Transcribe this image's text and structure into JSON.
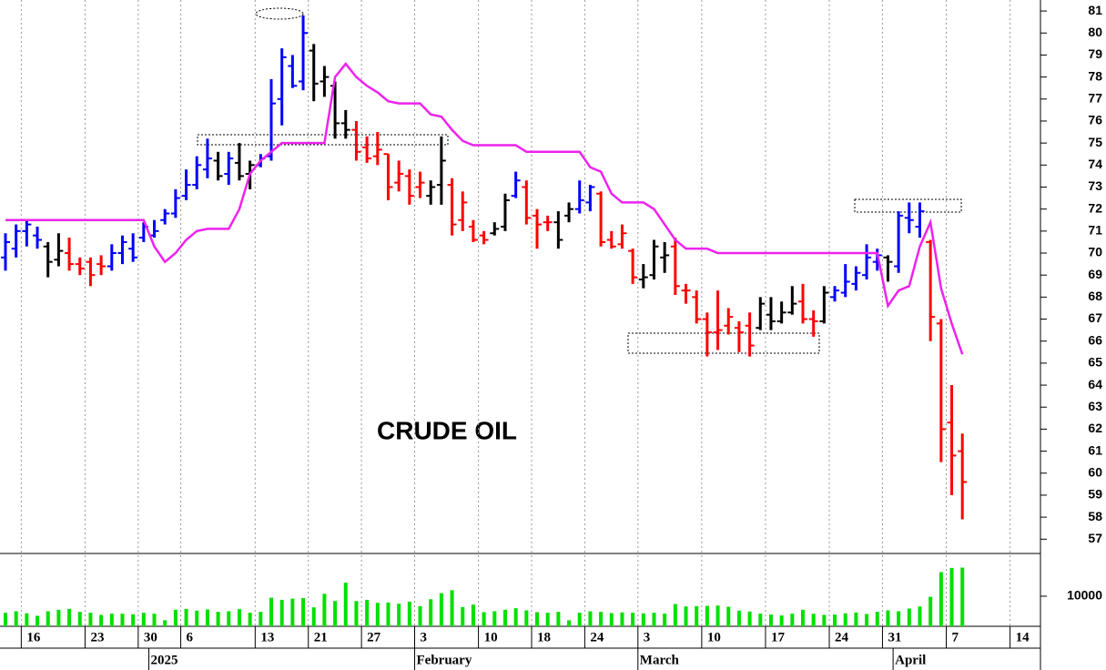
{
  "chart_data": [
    {
      "type": "ohlc",
      "annotation": "CRUDE OIL",
      "categories": [
        null,
        null,
        "16",
        null,
        null,
        null,
        null,
        null,
        "23",
        null,
        null,
        null,
        null,
        "30",
        null,
        null,
        null,
        "6",
        null,
        null,
        null,
        null,
        null,
        null,
        "13",
        null,
        null,
        null,
        null,
        "21",
        null,
        null,
        null,
        null,
        "27",
        null,
        null,
        null,
        null,
        "3",
        null,
        null,
        null,
        null,
        null,
        "10",
        null,
        null,
        null,
        null,
        "18",
        null,
        null,
        null,
        null,
        "24",
        null,
        null,
        null,
        null,
        "3",
        null,
        null,
        null,
        null,
        null,
        "10",
        null,
        null,
        null,
        null,
        null,
        "17",
        null,
        null,
        null,
        null,
        null,
        "24",
        null,
        null,
        null,
        null,
        "31",
        null,
        null,
        null,
        null,
        null,
        "7",
        null,
        null,
        null,
        null,
        null,
        "14"
      ],
      "months": [
        null,
        null,
        null,
        null,
        null,
        null,
        null,
        null,
        null,
        null,
        null,
        null,
        null,
        null,
        "2025",
        null,
        null,
        null,
        null,
        null,
        null,
        null,
        null,
        null,
        null,
        null,
        null,
        null,
        null,
        null,
        null,
        null,
        null,
        null,
        null,
        null,
        null,
        null,
        null,
        "February",
        null,
        null,
        null,
        null,
        null,
        null,
        null,
        null,
        null,
        null,
        null,
        null,
        null,
        null,
        null,
        null,
        null,
        null,
        null,
        null,
        "March",
        null,
        null,
        null,
        null,
        null,
        null,
        null,
        null,
        null,
        null,
        null,
        null,
        null,
        null,
        null,
        null,
        null,
        null,
        null,
        null,
        null,
        null,
        null,
        "April",
        null,
        null,
        null,
        null,
        null,
        null,
        null,
        null,
        null,
        null,
        null
      ],
      "open": [
        69.8,
        70.2,
        71.0,
        70.8,
        70.3,
        69.7,
        70.0,
        69.5,
        69.6,
        69.5,
        69.4,
        70.0,
        70.2,
        70.7,
        70.8,
        71.5,
        71.8,
        72.6,
        73.1,
        73.8,
        74.2,
        73.6,
        74.1,
        73.6,
        74.0,
        74.4,
        77.0,
        78.5,
        77.8,
        79.2,
        77.8,
        77.6,
        75.9,
        75.6,
        74.8,
        74.4,
        74.5,
        73.2,
        73.5,
        73.0,
        72.6,
        73.1,
        73.1,
        71.5,
        71.2,
        70.8,
        70.9,
        71.2,
        72.6,
        73.0,
        71.7,
        71.4,
        71.4,
        71.7,
        72.0,
        72.3,
        72.7,
        70.6,
        70.4,
        70.1,
        68.8,
        69.0,
        69.8,
        70.3,
        68.3,
        68.0,
        67.0,
        66.4,
        66.7,
        66.6,
        66.7,
        66.6,
        67.2,
        66.9,
        67.3,
        67.8,
        67.0,
        66.9,
        68.0,
        68.2,
        68.6,
        69.0,
        69.6,
        69.8,
        69.4,
        71.6,
        71.2,
        70.5,
        66.8,
        62.3,
        61.0,
        null,
        null,
        null,
        null,
        null
      ],
      "high": [
        70.9,
        71.3,
        71.5,
        71.2,
        70.5,
        70.9,
        70.7,
        69.8,
        69.8,
        69.9,
        70.4,
        70.8,
        70.9,
        71.4,
        71.5,
        72.0,
        72.9,
        73.8,
        74.4,
        75.2,
        74.6,
        74.6,
        75.0,
        74.2,
        74.5,
        77.9,
        79.3,
        79.0,
        80.8,
        79.5,
        78.5,
        77.8,
        76.5,
        76.0,
        75.3,
        75.5,
        74.5,
        74.2,
        73.8,
        73.7,
        73.3,
        75.3,
        73.4,
        72.8,
        71.5,
        71.0,
        71.4,
        72.7,
        73.7,
        73.3,
        72.0,
        71.7,
        71.9,
        72.3,
        73.3,
        73.1,
        72.8,
        71.0,
        71.3,
        70.2,
        69.5,
        70.6,
        70.5,
        70.7,
        68.6,
        68.3,
        67.3,
        68.3,
        67.5,
        66.9,
        67.3,
        68.0,
        68.0,
        67.8,
        68.5,
        68.6,
        67.4,
        68.5,
        68.5,
        69.5,
        69.4,
        70.4,
        70.2,
        69.9,
        71.9,
        72.3,
        72.3,
        70.6,
        67.0,
        64.0,
        61.8,
        null,
        null,
        null,
        null,
        null
      ],
      "low": [
        69.2,
        69.8,
        70.3,
        70.2,
        68.9,
        69.4,
        69.2,
        69.0,
        68.5,
        69.0,
        69.2,
        69.5,
        69.6,
        70.5,
        70.7,
        71.3,
        71.6,
        72.4,
        72.9,
        73.4,
        73.3,
        73.1,
        73.3,
        72.9,
        73.9,
        74.2,
        75.8,
        77.5,
        77.4,
        76.9,
        77.1,
        75.2,
        75.2,
        74.2,
        74.1,
        74.0,
        72.4,
        72.8,
        72.2,
        72.5,
        72.2,
        72.2,
        70.8,
        71.0,
        70.5,
        70.4,
        70.8,
        71.0,
        72.5,
        71.3,
        70.2,
        71.0,
        70.2,
        71.4,
        71.8,
        71.9,
        70.3,
        70.2,
        70.2,
        68.6,
        68.4,
        68.8,
        69.1,
        68.1,
        67.7,
        66.8,
        65.3,
        65.6,
        66.3,
        65.5,
        65.3,
        66.5,
        66.5,
        66.8,
        67.2,
        66.8,
        66.2,
        66.8,
        67.8,
        68.0,
        68.3,
        68.8,
        69.2,
        68.7,
        69.1,
        70.9,
        70.7,
        66.0,
        60.5,
        59.0,
        57.9,
        null,
        null,
        null,
        null,
        null
      ],
      "close": [
        70.5,
        71.0,
        71.3,
        70.6,
        69.6,
        70.1,
        69.5,
        69.3,
        69.0,
        69.4,
        70.0,
        70.5,
        69.8,
        71.2,
        71.0,
        71.8,
        72.5,
        73.1,
        74.0,
        74.3,
        73.5,
        74.3,
        73.5,
        74.0,
        74.3,
        76.8,
        78.9,
        77.6,
        80.0,
        77.7,
        78.0,
        75.9,
        75.6,
        74.6,
        74.3,
        74.7,
        73.0,
        73.6,
        72.6,
        73.2,
        73.0,
        74.2,
        71.3,
        72.3,
        70.6,
        70.6,
        71.1,
        72.4,
        73.3,
        71.6,
        71.3,
        71.4,
        70.6,
        72.0,
        72.4,
        73.0,
        70.5,
        70.3,
        70.9,
        68.9,
        68.9,
        70.3,
        69.9,
        68.5,
        68.3,
        67.0,
        66.4,
        66.5,
        67.1,
        66.4,
        65.8,
        67.7,
        66.9,
        67.3,
        67.7,
        67.0,
        66.9,
        68.2,
        68.3,
        68.7,
        69.1,
        69.8,
        69.9,
        69.6,
        71.7,
        71.5,
        71.9,
        67.1,
        62.0,
        60.8,
        59.6,
        null,
        null,
        null,
        null,
        null
      ],
      "colors": [
        "blue",
        "blue",
        "blue",
        "blue",
        "black",
        "black",
        "red",
        "red",
        "red",
        "red",
        "blue",
        "blue",
        "blue",
        "blue",
        "blue",
        "blue",
        "blue",
        "blue",
        "blue",
        "blue",
        "black",
        "blue",
        "black",
        "black",
        "blue",
        "blue",
        "blue",
        "blue",
        "blue",
        "black",
        "black",
        "black",
        "black",
        "red",
        "red",
        "red",
        "red",
        "red",
        "red",
        "red",
        "black",
        "black",
        "red",
        "red",
        "red",
        "red",
        "black",
        "black",
        "blue",
        "red",
        "red",
        "red",
        "black",
        "black",
        "blue",
        "blue",
        "red",
        "red",
        "red",
        "red",
        "black",
        "black",
        "black",
        "red",
        "red",
        "red",
        "red",
        "red",
        "red",
        "red",
        "red",
        "black",
        "black",
        "black",
        "black",
        "red",
        "red",
        "black",
        "blue",
        "blue",
        "blue",
        "blue",
        "blue",
        "black",
        "blue",
        "blue",
        "blue",
        "red",
        "red",
        "red",
        "red",
        null,
        null,
        null,
        null,
        null
      ],
      "line": {
        "color": "#ee22ee",
        "values": [
          71.5,
          71.5,
          71.5,
          71.5,
          71.5,
          71.5,
          71.5,
          71.5,
          71.5,
          71.5,
          71.5,
          71.5,
          71.5,
          71.5,
          70.3,
          69.6,
          70.0,
          70.6,
          71.0,
          71.1,
          71.1,
          71.1,
          72.0,
          73.6,
          74.2,
          74.6,
          75.0,
          75.0,
          75.0,
          75.0,
          75.0,
          78.0,
          78.6,
          78.0,
          77.6,
          77.3,
          76.9,
          76.8,
          76.8,
          76.8,
          76.3,
          76.2,
          75.6,
          75.1,
          74.9,
          74.9,
          74.9,
          74.9,
          74.9,
          74.6,
          74.6,
          74.6,
          74.6,
          74.6,
          74.6,
          73.9,
          73.7,
          72.7,
          72.3,
          72.3,
          72.3,
          72.0,
          71.3,
          70.6,
          70.2,
          70.2,
          70.2,
          70.0,
          70.0,
          70.0,
          70.0,
          70.0,
          70.0,
          70.0,
          70.0,
          70.0,
          70.0,
          70.0,
          70.0,
          70.0,
          70.0,
          70.0,
          70.0,
          67.6,
          68.3,
          68.5,
          70.3,
          71.4,
          68.4,
          66.8,
          65.4,
          null,
          null,
          null,
          null,
          null
        ]
      },
      "ylim": [
        56.35,
        81.5
      ],
      "yticks": [
        57,
        58,
        59,
        60,
        61,
        62,
        63,
        64,
        65,
        66,
        67,
        68,
        69,
        70,
        71,
        72,
        73,
        74,
        75,
        76,
        77,
        78,
        79,
        80,
        81
      ]
    },
    {
      "type": "bar",
      "color": "#00e000",
      "values": [
        4500,
        5000,
        4300,
        3500,
        5000,
        5500,
        5800,
        4800,
        4500,
        3800,
        4200,
        4200,
        4000,
        4500,
        4200,
        2000,
        5500,
        5800,
        5200,
        5600,
        4800,
        5000,
        5700,
        4500,
        4800,
        9500,
        8800,
        9200,
        9400,
        6300,
        10800,
        8400,
        14500,
        8400,
        8800,
        7800,
        7900,
        7500,
        8200,
        6700,
        9000,
        11000,
        12000,
        6400,
        7200,
        4700,
        5000,
        5500,
        6000,
        5300,
        4700,
        4500,
        4800,
        2000,
        4500,
        5000,
        4800,
        4400,
        4600,
        4500,
        4300,
        4500,
        4200,
        7400,
        6600,
        6700,
        6800,
        6900,
        6500,
        5200,
        4900,
        4200,
        3900,
        3600,
        4200,
        5500,
        4200,
        3800,
        3900,
        4300,
        4600,
        4100,
        4800,
        5300,
        5000,
        5900,
        6600,
        9800,
        18000,
        19400,
        19500,
        null,
        null,
        null,
        null,
        null
      ],
      "ylim": [
        0,
        23600
      ],
      "yticks": [
        10000
      ]
    }
  ]
}
